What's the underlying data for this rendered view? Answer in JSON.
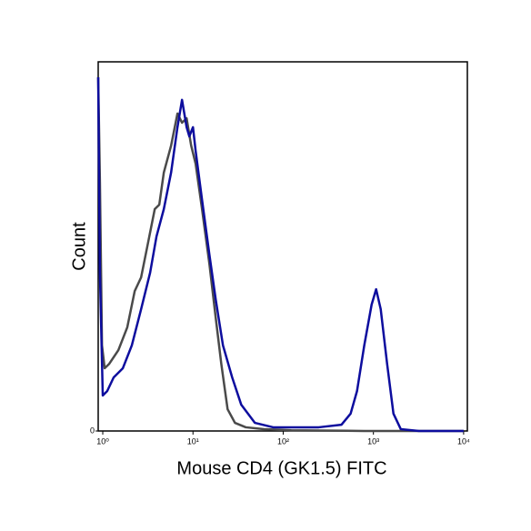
{
  "chart_data": {
    "type": "line",
    "xlabel": "Mouse CD4 (GK1.5) FITC",
    "ylabel": "Count",
    "xscale": "log",
    "xlim": [
      0.89,
      11000
    ],
    "xticks": [
      {
        "value": 1,
        "label": "10⁰"
      },
      {
        "value": 10,
        "label": "10¹"
      },
      {
        "value": 100,
        "label": "10²"
      },
      {
        "value": 1000,
        "label": "10³"
      },
      {
        "value": 10000,
        "label": "10⁴"
      }
    ],
    "ylim": [
      0,
      100
    ],
    "yticks": [
      0
    ],
    "series": [
      {
        "color": "#4a4a4a",
        "x": [
          0.89,
          0.93,
          0.98,
          1.05,
          1.18,
          1.49,
          1.87,
          2.26,
          2.66,
          3.13,
          3.77,
          4.23,
          4.75,
          5.72,
          6.73,
          7.56,
          8.5,
          9.55,
          10.7,
          12.6,
          15.2,
          17.9,
          20.6,
          24.2,
          29.2,
          38.5,
          61.4,
          123,
          792,
          10000
        ],
        "values": [
          95.8,
          67.5,
          23.2,
          17.0,
          18.2,
          21.9,
          28.1,
          37.9,
          41.6,
          50.2,
          60.1,
          61.3,
          70.0,
          77.3,
          86.0,
          83.5,
          84.7,
          77.3,
          72.4,
          60.1,
          45.3,
          30.5,
          18.2,
          5.9,
          2.2,
          1.0,
          0.5,
          0.2,
          0,
          0
        ]
      },
      {
        "color": "#0d0d9e",
        "x": [
          0.89,
          0.93,
          1.0,
          1.12,
          1.32,
          1.67,
          2.1,
          2.66,
          3.35,
          3.94,
          4.75,
          5.72,
          6.73,
          7.56,
          8.5,
          9.11,
          10,
          10.7,
          12.6,
          15.2,
          17.9,
          21.5,
          27.2,
          34.3,
          48.6,
          77.4,
          248,
          443,
          559,
          658,
          792,
          955,
          1072,
          1205,
          1419,
          1668,
          2010,
          3200,
          10000
        ],
        "values": [
          95.8,
          42.9,
          9.6,
          10.8,
          14.5,
          17.0,
          23.2,
          33.0,
          42.9,
          52.7,
          60.1,
          70.0,
          82.3,
          89.7,
          82.3,
          79.8,
          82.3,
          75.9,
          62.6,
          47.8,
          35.5,
          23.2,
          14.5,
          7.1,
          2.2,
          1.0,
          1.0,
          1.7,
          4.7,
          10.8,
          23.2,
          34.2,
          38.4,
          33.0,
          18.2,
          4.7,
          0.5,
          0,
          0
        ]
      }
    ]
  }
}
